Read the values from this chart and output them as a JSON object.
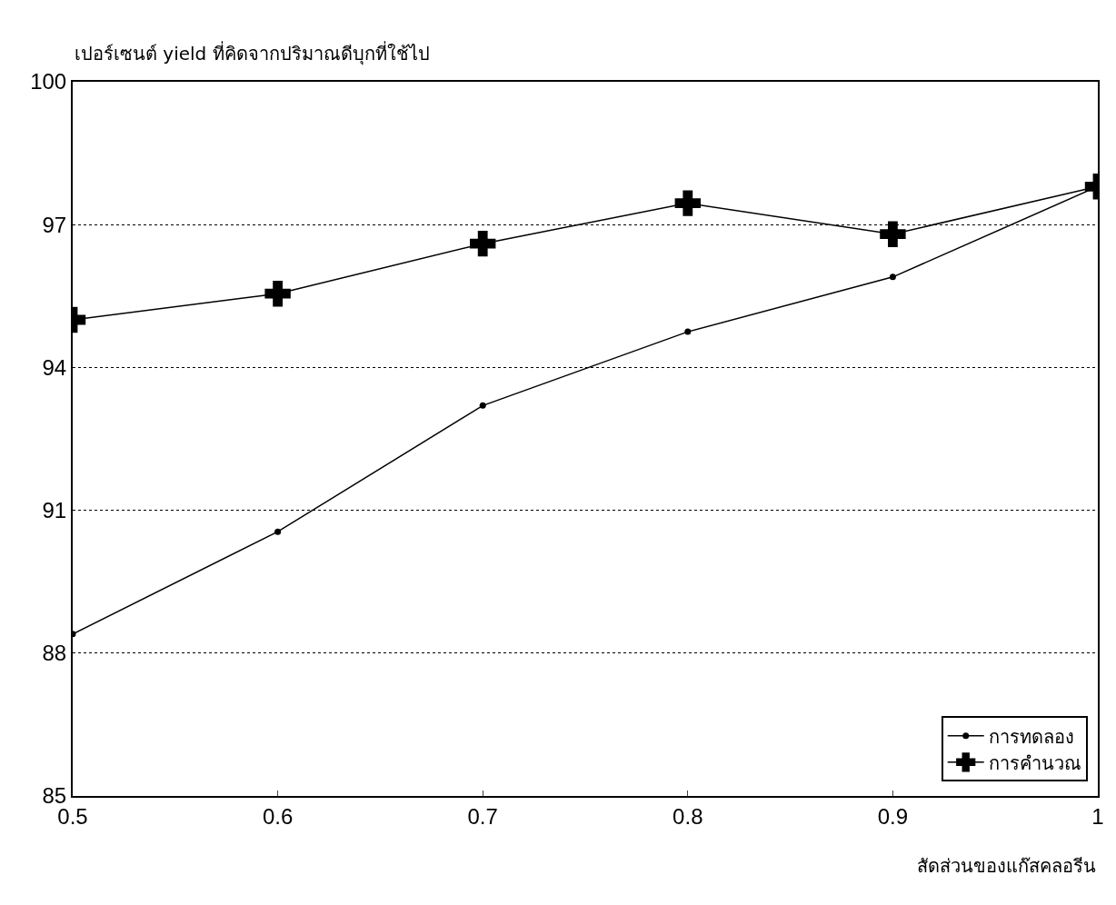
{
  "chart_data": {
    "type": "line",
    "ylabel": "เปอร์เซนต์ yield ที่คิดจากปริมาณดีบุกที่ใช้ไป",
    "xlabel": "สัดส่วนของแก๊สคลอรีน",
    "x": [
      0.5,
      0.6,
      0.7,
      0.8,
      0.9,
      1
    ],
    "series": [
      {
        "name": "การทดลอง",
        "color": "#000000",
        "marker": "circle",
        "values": [
          88.4,
          90.55,
          93.2,
          94.75,
          95.9,
          97.8
        ]
      },
      {
        "name": "การคำนวณ",
        "color": "#000000",
        "marker": "cross",
        "values": [
          95.0,
          95.55,
          96.6,
          97.45,
          96.8,
          97.8
        ]
      }
    ],
    "xlim": [
      0.5,
      1
    ],
    "xticks": [
      0.5,
      0.6,
      0.7,
      0.8,
      0.9,
      1
    ],
    "ylim": [
      85,
      100
    ],
    "yticks": [
      85,
      88,
      91,
      94,
      97,
      100
    ],
    "grid": "y",
    "legend": "bottom right",
    "line_style": "solid"
  }
}
